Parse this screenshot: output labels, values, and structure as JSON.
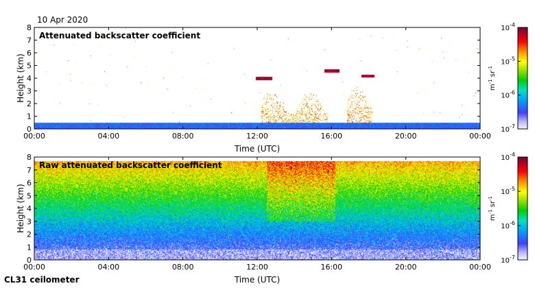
{
  "date_label": "10 Apr 2020",
  "instrument_label": "CL31 ceilometer",
  "chart_data": [
    {
      "type": "heatmap",
      "title": "Attenuated backscatter coefficient",
      "xlabel": "Time (UTC)",
      "ylabel": "Height (km)",
      "xlim": [
        0,
        24
      ],
      "ylim": [
        0,
        8
      ],
      "x_ticks": [
        "00:00",
        "04:00",
        "08:00",
        "12:00",
        "16:00",
        "20:00",
        "00:00"
      ],
      "y_ticks": [
        "0",
        "1",
        "2",
        "3",
        "4",
        "5",
        "6",
        "7",
        "8"
      ],
      "colorbar": {
        "scale": "log",
        "min": 1e-07,
        "max": 0.0001,
        "tick_bases": [
          "10",
          "10",
          "10",
          "10"
        ],
        "tick_exponents": [
          "-4",
          "-5",
          "-6",
          "-7"
        ],
        "label": "m-1 sr-1",
        "label_parts": [
          "m",
          "-1",
          " sr",
          "-1"
        ]
      },
      "features": {
        "boundary_layer_top_km": 0.5,
        "cloud_layers": [
          {
            "t_start": 11.9,
            "t_end": 12.8,
            "height_km": 4.0
          },
          {
            "t_start": 15.6,
            "t_end": 16.4,
            "height_km": 4.6
          },
          {
            "t_start": 17.6,
            "t_end": 18.3,
            "height_km": 4.2
          }
        ],
        "precipitation": [
          {
            "t_start": 12.2,
            "t_end": 15.8,
            "top_km": 3.0
          },
          {
            "t_start": 16.8,
            "t_end": 18.2,
            "top_km": 3.5
          }
        ]
      }
    },
    {
      "type": "heatmap",
      "title": "Raw attenuated backscatter coefficient",
      "xlabel": "Time (UTC)",
      "ylabel": "Height (km)",
      "xlim": [
        0,
        24
      ],
      "ylim": [
        0,
        8
      ],
      "x_ticks": [
        "00:00",
        "04:00",
        "08:00",
        "12:00",
        "16:00",
        "20:00",
        "00:00"
      ],
      "y_ticks": [
        "0",
        "1",
        "2",
        "3",
        "4",
        "5",
        "6",
        "7",
        "8"
      ],
      "colorbar": {
        "scale": "log",
        "min": 1e-07,
        "max": 0.0001,
        "tick_bases": [
          "10",
          "10",
          "10",
          "10"
        ],
        "tick_exponents": [
          "-4",
          "-5",
          "-6",
          "-7"
        ],
        "label": "m-1 sr-1",
        "label_parts": [
          "m",
          "-1",
          " sr",
          "-1"
        ]
      },
      "features": {
        "data_top_km": 7.7,
        "noisy_period": {
          "t_start": 12.5,
          "t_end": 16.2
        },
        "low_signal_layer_km": 0.8
      }
    }
  ]
}
